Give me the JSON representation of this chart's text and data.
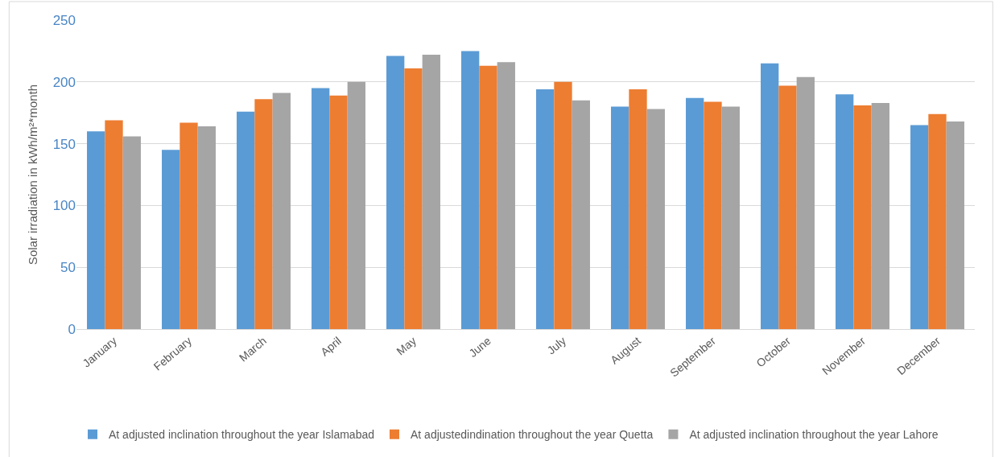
{
  "chart_data": {
    "type": "bar",
    "ylabel": "Solar irradiation in kWh/m²*month",
    "categories": [
      "January",
      "February",
      "March",
      "April",
      "May",
      "June",
      "July",
      "August",
      "September",
      "October",
      "November",
      "December"
    ],
    "series": [
      {
        "name": "At adjusted inclination throughout the year Islamabad",
        "color": "#5b9bd5",
        "values": [
          160,
          145,
          176,
          195,
          221,
          225,
          194,
          180,
          187,
          215,
          190,
          165
        ]
      },
      {
        "name": "At adjustedindination throughout the year Quetta",
        "color": "#ed7d31",
        "values": [
          169,
          167,
          186,
          189,
          211,
          213,
          200,
          194,
          184,
          197,
          181,
          174
        ]
      },
      {
        "name": "At adjusted inclination throughout the year Lahore",
        "color": "#a5a5a5",
        "values": [
          156,
          164,
          191,
          200,
          222,
          216,
          185,
          178,
          180,
          204,
          183,
          168
        ]
      }
    ],
    "ylim": [
      0,
      250
    ],
    "yticks": [
      0,
      50,
      100,
      150,
      200,
      250
    ],
    "grid": "y",
    "legend": "bottom"
  }
}
